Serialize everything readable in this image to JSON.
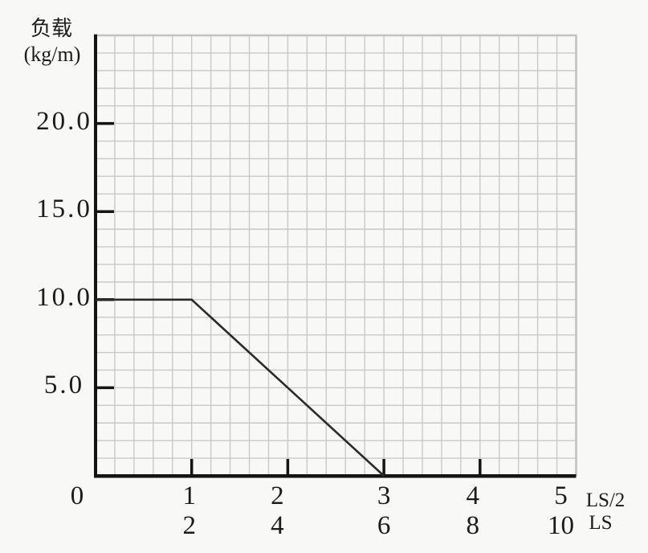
{
  "chart_data": {
    "type": "line",
    "y_axis": {
      "label": "负载",
      "unit_label": "(kg/m)",
      "lim": [
        0,
        25
      ],
      "minor_step": 1,
      "ticks": [
        {
          "value": 5,
          "label": "5.0"
        },
        {
          "value": 10,
          "label": "10.0"
        },
        {
          "value": 15,
          "label": "15.0"
        },
        {
          "value": 20,
          "label": "20.0"
        }
      ]
    },
    "x_axis": {
      "origin_label": "0",
      "primary_unit": "LS/2",
      "secondary_unit": "LS",
      "lim": [
        0,
        5
      ],
      "minor_step": 0.2,
      "ticks": [
        {
          "pos": 1,
          "primary": "1",
          "secondary": "2",
          "mark": true
        },
        {
          "pos": 2,
          "primary": "2",
          "secondary": "4",
          "mark": true
        },
        {
          "pos": 3,
          "primary": "3",
          "secondary": "6",
          "mark": true
        },
        {
          "pos": 4,
          "primary": "4",
          "secondary": "8",
          "mark": true
        },
        {
          "pos": 5,
          "primary": "5",
          "secondary": "10",
          "mark": false
        }
      ]
    },
    "series": [
      {
        "name": "load-curve",
        "points": [
          [
            0,
            10
          ],
          [
            1,
            10
          ],
          [
            3,
            0
          ]
        ]
      }
    ],
    "grid": true,
    "legend": false,
    "colors": {
      "background": "#f8f8f7",
      "grid": "#c9c9c9",
      "grid_border": "#c2c2c2",
      "axis": "#141414",
      "line": "#2b2b2b",
      "text": "#1b1b1b"
    }
  }
}
